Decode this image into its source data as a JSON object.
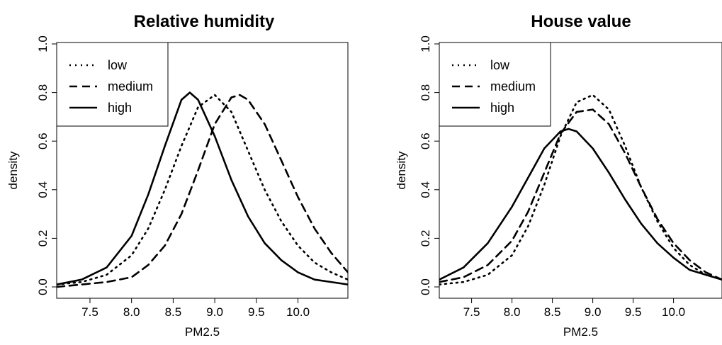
{
  "chart_data": [
    {
      "type": "line",
      "title": "Relative humidity",
      "xlabel": "PM2.5",
      "ylabel": "density",
      "xlim": [
        7.1,
        10.6
      ],
      "ylim": [
        0.0,
        1.0
      ],
      "xticks": [
        "7.5",
        "8.0",
        "8.5",
        "9.0",
        "9.5",
        "10.0"
      ],
      "yticks": [
        "0.0",
        "0.2",
        "0.4",
        "0.6",
        "0.8",
        "1.0"
      ],
      "legend_position": "top-left",
      "series": [
        {
          "name": "low",
          "style": "dotted",
          "x": [
            7.1,
            7.4,
            7.7,
            8.0,
            8.2,
            8.4,
            8.6,
            8.8,
            9.0,
            9.2,
            9.4,
            9.6,
            9.8,
            10.0,
            10.2,
            10.4,
            10.6
          ],
          "y": [
            0.01,
            0.02,
            0.05,
            0.13,
            0.24,
            0.4,
            0.58,
            0.74,
            0.79,
            0.72,
            0.56,
            0.4,
            0.27,
            0.17,
            0.1,
            0.06,
            0.03
          ]
        },
        {
          "name": "medium",
          "style": "dashed",
          "x": [
            7.1,
            7.4,
            7.7,
            8.0,
            8.2,
            8.4,
            8.6,
            8.8,
            9.0,
            9.2,
            9.3,
            9.4,
            9.6,
            9.8,
            10.0,
            10.2,
            10.4,
            10.6
          ],
          "y": [
            0.0,
            0.01,
            0.02,
            0.04,
            0.09,
            0.17,
            0.3,
            0.48,
            0.67,
            0.78,
            0.79,
            0.77,
            0.67,
            0.52,
            0.37,
            0.24,
            0.14,
            0.06
          ]
        },
        {
          "name": "high",
          "style": "solid",
          "x": [
            7.1,
            7.4,
            7.7,
            8.0,
            8.2,
            8.4,
            8.6,
            8.7,
            8.8,
            9.0,
            9.2,
            9.4,
            9.6,
            9.8,
            10.0,
            10.2,
            10.4,
            10.6
          ],
          "y": [
            0.01,
            0.03,
            0.08,
            0.21,
            0.38,
            0.58,
            0.77,
            0.8,
            0.77,
            0.62,
            0.44,
            0.29,
            0.18,
            0.11,
            0.06,
            0.03,
            0.02,
            0.01
          ]
        }
      ]
    },
    {
      "type": "line",
      "title": "House value",
      "xlabel": "PM2.5",
      "ylabel": "density",
      "xlim": [
        7.1,
        10.6
      ],
      "ylim": [
        0.0,
        1.0
      ],
      "xticks": [
        "7.5",
        "8.0",
        "8.5",
        "9.0",
        "9.5",
        "10.0"
      ],
      "yticks": [
        "0.0",
        "0.2",
        "0.4",
        "0.6",
        "0.8",
        "1.0"
      ],
      "legend_position": "top-left",
      "series": [
        {
          "name": "low",
          "style": "dotted",
          "x": [
            7.1,
            7.4,
            7.7,
            8.0,
            8.2,
            8.4,
            8.6,
            8.8,
            9.0,
            9.2,
            9.4,
            9.6,
            9.8,
            10.0,
            10.2,
            10.4,
            10.6
          ],
          "y": [
            0.01,
            0.02,
            0.05,
            0.13,
            0.25,
            0.42,
            0.62,
            0.76,
            0.79,
            0.73,
            0.58,
            0.41,
            0.27,
            0.16,
            0.09,
            0.05,
            0.03
          ]
        },
        {
          "name": "medium",
          "style": "dashed",
          "x": [
            7.1,
            7.4,
            7.7,
            8.0,
            8.2,
            8.4,
            8.6,
            8.8,
            9.0,
            9.2,
            9.4,
            9.6,
            9.8,
            10.0,
            10.2,
            10.4,
            10.6
          ],
          "y": [
            0.02,
            0.04,
            0.09,
            0.19,
            0.31,
            0.47,
            0.63,
            0.72,
            0.73,
            0.67,
            0.55,
            0.41,
            0.28,
            0.18,
            0.11,
            0.06,
            0.03
          ]
        },
        {
          "name": "high",
          "style": "solid",
          "x": [
            7.1,
            7.4,
            7.7,
            8.0,
            8.2,
            8.4,
            8.6,
            8.7,
            8.8,
            9.0,
            9.2,
            9.4,
            9.6,
            9.8,
            10.0,
            10.2,
            10.4,
            10.6
          ],
          "y": [
            0.03,
            0.08,
            0.18,
            0.33,
            0.45,
            0.57,
            0.64,
            0.65,
            0.64,
            0.57,
            0.47,
            0.36,
            0.26,
            0.18,
            0.12,
            0.07,
            0.05,
            0.03
          ]
        }
      ]
    }
  ]
}
